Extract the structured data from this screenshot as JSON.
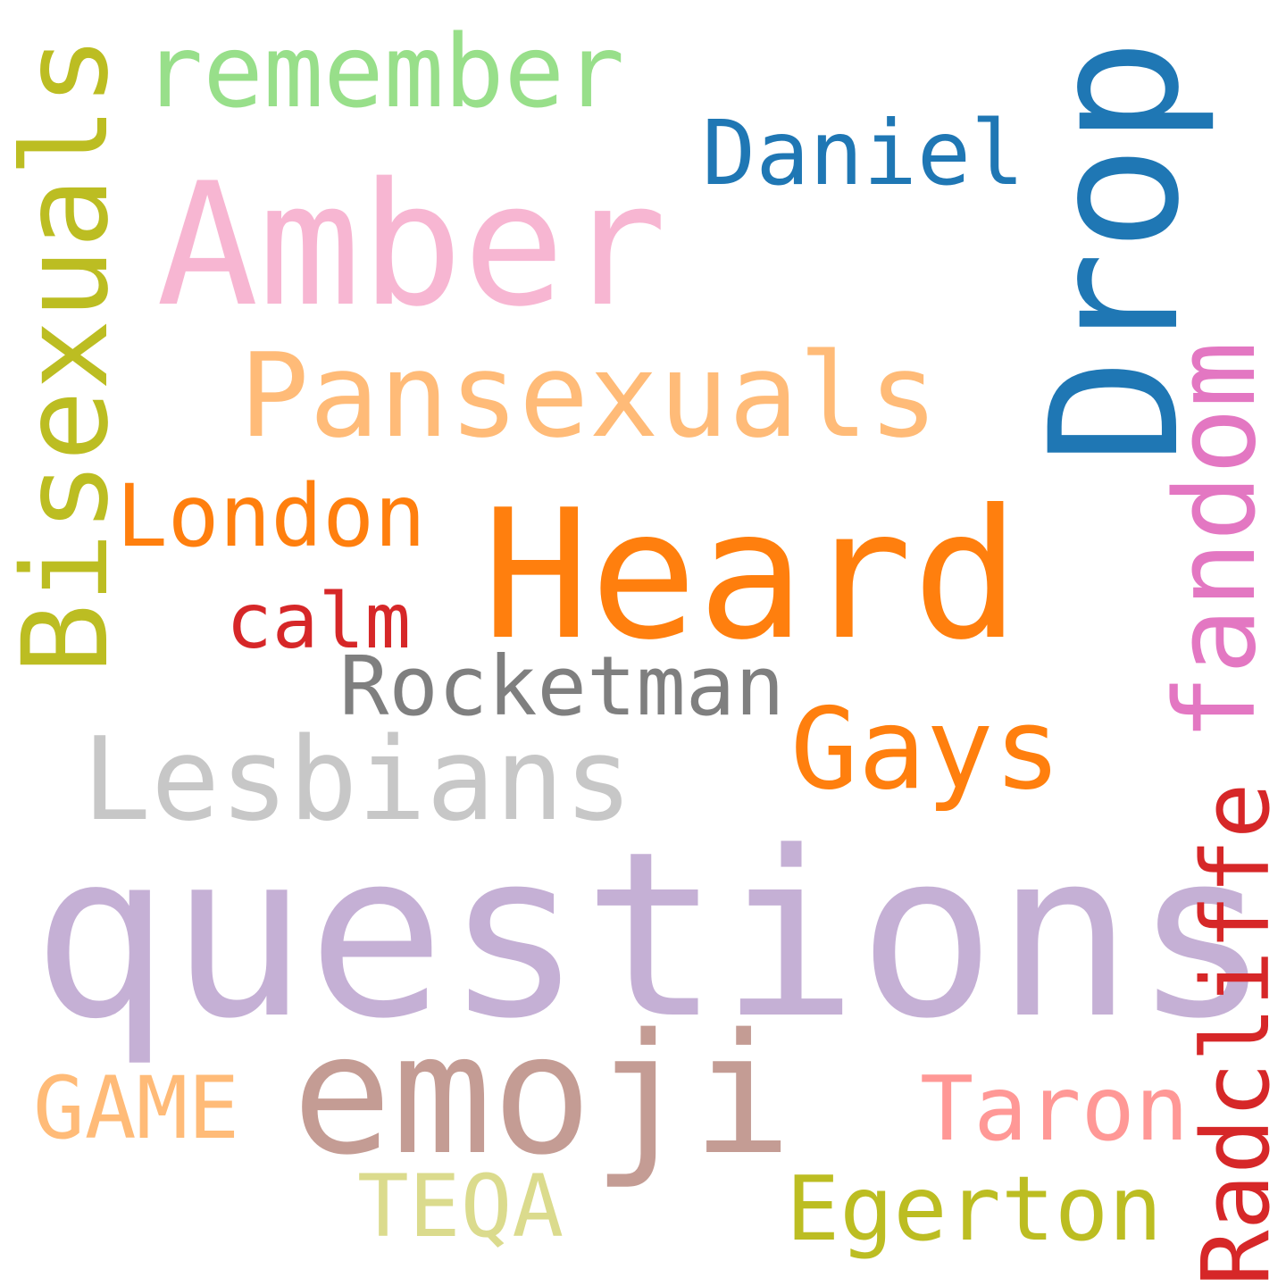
{
  "cloud": {
    "background": "#ffffff",
    "words": {
      "remember": {
        "text": "remember",
        "color": "#98df8a",
        "orientation": "horizontal"
      },
      "daniel": {
        "text": "Daniel",
        "color": "#1f77b4",
        "orientation": "horizontal"
      },
      "amber": {
        "text": "Amber",
        "color": "#f7b6d2",
        "orientation": "horizontal"
      },
      "pansexuals": {
        "text": "Pansexuals",
        "color": "#ffbb78",
        "orientation": "horizontal"
      },
      "london": {
        "text": "London",
        "color": "#ff7f0e",
        "orientation": "horizontal"
      },
      "heard": {
        "text": "Heard",
        "color": "#ff7f0e",
        "orientation": "horizontal"
      },
      "calm": {
        "text": "calm",
        "color": "#d62728",
        "orientation": "horizontal"
      },
      "rocketman": {
        "text": "Rocketman",
        "color": "#7f7f7f",
        "orientation": "horizontal"
      },
      "gays": {
        "text": "Gays",
        "color": "#ff7f0e",
        "orientation": "horizontal"
      },
      "lesbians": {
        "text": "Lesbians",
        "color": "#c7c7c7",
        "orientation": "horizontal"
      },
      "questions": {
        "text": "questions",
        "color": "#c5b0d5",
        "orientation": "horizontal"
      },
      "emoji": {
        "text": "emoji",
        "color": "#c49c94",
        "orientation": "horizontal"
      },
      "game": {
        "text": "GAME",
        "color": "#ffbb78",
        "orientation": "horizontal"
      },
      "taron": {
        "text": "Taron",
        "color": "#ff9896",
        "orientation": "horizontal"
      },
      "teqa": {
        "text": "TEQA",
        "color": "#dbdb8d",
        "orientation": "horizontal"
      },
      "egerton": {
        "text": "Egerton",
        "color": "#bcbd22",
        "orientation": "horizontal"
      },
      "bisexuals": {
        "text": "Bisexuals",
        "color": "#bcbd22",
        "orientation": "vertical"
      },
      "drop": {
        "text": "Drop",
        "color": "#1f77b4",
        "orientation": "vertical"
      },
      "fandom": {
        "text": "fandom",
        "color": "#e377c2",
        "orientation": "vertical"
      },
      "radcliffe": {
        "text": "Radcliffe",
        "color": "#d62728",
        "orientation": "vertical"
      }
    }
  }
}
